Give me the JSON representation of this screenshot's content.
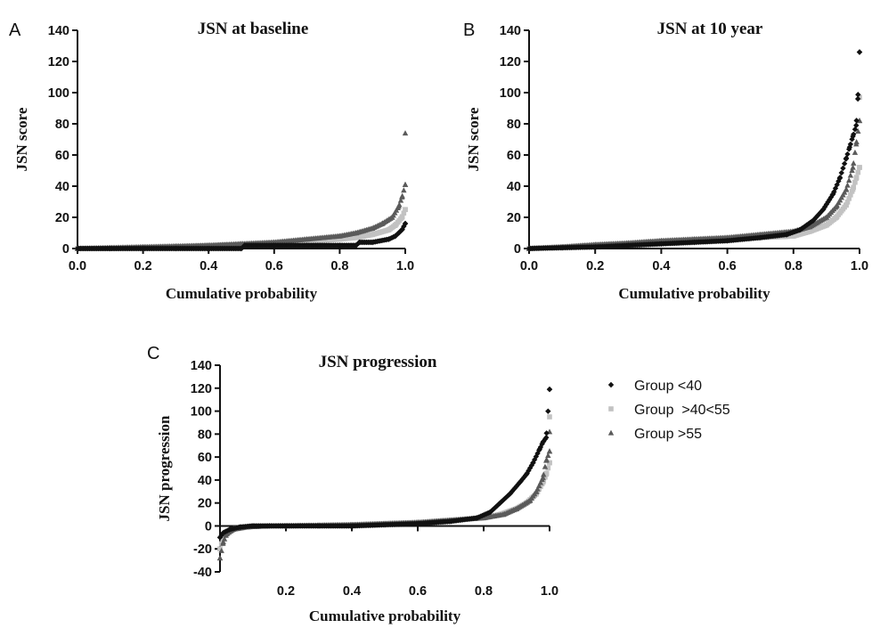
{
  "colors": {
    "g1": "#111111",
    "g2": "#c2c2c2",
    "g3": "#5a5a5a"
  },
  "legend": [
    {
      "label": "Group <40",
      "marker": "diamond",
      "color": "#111111"
    },
    {
      "label": "Group  >40<55",
      "marker": "square",
      "color": "#c2c2c2"
    },
    {
      "label": "Group >55",
      "marker": "triangle",
      "color": "#5a5a5a"
    }
  ],
  "chart_data": [
    {
      "panel": "A",
      "type": "scatter",
      "title": "JSN at baseline",
      "xlabel": "Cumulative probability",
      "ylabel": "JSN score",
      "xlim": [
        0,
        1
      ],
      "ylim": [
        0,
        140
      ],
      "xticks": [
        "0.0",
        "0.2",
        "0.4",
        "0.6",
        "0.8",
        "1.0"
      ],
      "yticks": [
        "0",
        "20",
        "40",
        "60",
        "80",
        "100",
        "120",
        "140"
      ],
      "series": [
        {
          "name": "Group <40",
          "marker": "diamond",
          "color": "#111111",
          "points": [
            [
              0,
              0
            ],
            [
              0.1,
              0
            ],
            [
              0.2,
              0
            ],
            [
              0.3,
              0
            ],
            [
              0.4,
              0
            ],
            [
              0.5,
              0
            ],
            [
              0.51,
              2
            ],
            [
              0.6,
              2
            ],
            [
              0.7,
              2
            ],
            [
              0.8,
              2
            ],
            [
              0.85,
              2
            ],
            [
              0.86,
              4
            ],
            [
              0.9,
              4
            ],
            [
              0.95,
              6
            ],
            [
              0.97,
              8
            ],
            [
              0.98,
              10
            ],
            [
              0.99,
              12
            ],
            [
              1.0,
              16
            ]
          ]
        },
        {
          "name": "Group  >40<55",
          "marker": "square",
          "color": "#c2c2c2",
          "points": [
            [
              0,
              0
            ],
            [
              0.1,
              0
            ],
            [
              0.2,
              0.5
            ],
            [
              0.3,
              1
            ],
            [
              0.4,
              2
            ],
            [
              0.5,
              2.5
            ],
            [
              0.6,
              3.5
            ],
            [
              0.7,
              4.5
            ],
            [
              0.8,
              6
            ],
            [
              0.85,
              7
            ],
            [
              0.9,
              9
            ],
            [
              0.95,
              12
            ],
            [
              0.97,
              15
            ],
            [
              0.99,
              20
            ],
            [
              1.0,
              25
            ]
          ]
        },
        {
          "name": "Group >55",
          "marker": "triangle",
          "color": "#5a5a5a",
          "points": [
            [
              0,
              0
            ],
            [
              0.1,
              0.5
            ],
            [
              0.2,
              1
            ],
            [
              0.3,
              1.5
            ],
            [
              0.4,
              2
            ],
            [
              0.5,
              3
            ],
            [
              0.6,
              4
            ],
            [
              0.7,
              6
            ],
            [
              0.8,
              8
            ],
            [
              0.85,
              10
            ],
            [
              0.9,
              13
            ],
            [
              0.93,
              16
            ],
            [
              0.96,
              20
            ],
            [
              0.98,
              27
            ],
            [
              0.99,
              33
            ],
            [
              1.0,
              41
            ],
            [
              1.0,
              74
            ]
          ]
        }
      ]
    },
    {
      "panel": "B",
      "type": "scatter",
      "title": "JSN at 10 year",
      "xlabel": "Cumulative probability",
      "ylabel": "JSN score",
      "xlim": [
        0,
        1
      ],
      "ylim": [
        0,
        140
      ],
      "xticks": [
        "0.0",
        "0.2",
        "0.4",
        "0.6",
        "0.8",
        "1.0"
      ],
      "yticks": [
        "0",
        "20",
        "40",
        "60",
        "80",
        "100",
        "120",
        "140"
      ],
      "series": [
        {
          "name": "Group <40",
          "marker": "diamond",
          "color": "#111111",
          "points": [
            [
              0,
              0
            ],
            [
              0.1,
              0.5
            ],
            [
              0.2,
              1
            ],
            [
              0.3,
              2
            ],
            [
              0.4,
              3
            ],
            [
              0.5,
              4
            ],
            [
              0.6,
              5
            ],
            [
              0.7,
              7
            ],
            [
              0.78,
              9
            ],
            [
              0.82,
              12
            ],
            [
              0.86,
              18
            ],
            [
              0.89,
              25
            ],
            [
              0.92,
              35
            ],
            [
              0.94,
              45
            ],
            [
              0.96,
              58
            ],
            [
              0.97,
              65
            ],
            [
              0.98,
              72
            ],
            [
              0.99,
              79
            ],
            [
              0.995,
              96
            ],
            [
              1.0,
              126
            ]
          ]
        },
        {
          "name": "Group  >40<55",
          "marker": "square",
          "color": "#c2c2c2",
          "points": [
            [
              0,
              0
            ],
            [
              0.1,
              1
            ],
            [
              0.2,
              2
            ],
            [
              0.3,
              3
            ],
            [
              0.4,
              4
            ],
            [
              0.5,
              5
            ],
            [
              0.6,
              6
            ],
            [
              0.7,
              7
            ],
            [
              0.8,
              8
            ],
            [
              0.85,
              11
            ],
            [
              0.9,
              15
            ],
            [
              0.93,
              20
            ],
            [
              0.96,
              28
            ],
            [
              0.98,
              38
            ],
            [
              0.99,
              45
            ],
            [
              1.0,
              52
            ],
            [
              1.0,
              97
            ]
          ]
        },
        {
          "name": "Group >55",
          "marker": "triangle",
          "color": "#5a5a5a",
          "points": [
            [
              0,
              0
            ],
            [
              0.1,
              1
            ],
            [
              0.2,
              2.5
            ],
            [
              0.3,
              3.5
            ],
            [
              0.4,
              5
            ],
            [
              0.5,
              6
            ],
            [
              0.6,
              7
            ],
            [
              0.7,
              9
            ],
            [
              0.8,
              11
            ],
            [
              0.85,
              14
            ],
            [
              0.9,
              20
            ],
            [
              0.93,
              27
            ],
            [
              0.96,
              38
            ],
            [
              0.98,
              52
            ],
            [
              0.99,
              67
            ],
            [
              1.0,
              82
            ]
          ]
        }
      ]
    },
    {
      "panel": "C",
      "type": "scatter",
      "title": "JSN progression",
      "xlabel": "Cumulative probability",
      "ylabel": "JSN progression",
      "xlim": [
        0,
        1
      ],
      "ylim": [
        -40,
        140
      ],
      "xticks": [
        "0.2",
        "0.4",
        "0.6",
        "0.8",
        "1.0"
      ],
      "yticks": [
        "-40",
        "-20",
        "0",
        "20",
        "40",
        "60",
        "80",
        "100",
        "120",
        "140"
      ],
      "series": [
        {
          "name": "Group <40",
          "marker": "diamond",
          "color": "#111111",
          "points": [
            [
              0.0,
              -10
            ],
            [
              0.01,
              -6
            ],
            [
              0.03,
              -3
            ],
            [
              0.06,
              -1
            ],
            [
              0.1,
              0
            ],
            [
              0.2,
              0
            ],
            [
              0.3,
              0
            ],
            [
              0.4,
              0
            ],
            [
              0.5,
              1
            ],
            [
              0.6,
              2
            ],
            [
              0.7,
              4
            ],
            [
              0.78,
              7
            ],
            [
              0.82,
              12
            ],
            [
              0.85,
              20
            ],
            [
              0.88,
              28
            ],
            [
              0.91,
              38
            ],
            [
              0.93,
              45
            ],
            [
              0.95,
              55
            ],
            [
              0.97,
              67
            ],
            [
              0.98,
              73
            ],
            [
              0.99,
              77
            ],
            [
              1.0,
              119
            ]
          ]
        },
        {
          "name": "Group  >40<55",
          "marker": "square",
          "color": "#c2c2c2",
          "points": [
            [
              0.0,
              -20
            ],
            [
              0.01,
              -10
            ],
            [
              0.02,
              -5
            ],
            [
              0.05,
              -2
            ],
            [
              0.1,
              0
            ],
            [
              0.2,
              0
            ],
            [
              0.3,
              0.5
            ],
            [
              0.4,
              1
            ],
            [
              0.5,
              2
            ],
            [
              0.6,
              3
            ],
            [
              0.7,
              5
            ],
            [
              0.8,
              7
            ],
            [
              0.85,
              10
            ],
            [
              0.9,
              15
            ],
            [
              0.93,
              20
            ],
            [
              0.96,
              28
            ],
            [
              0.98,
              38
            ],
            [
              0.99,
              45
            ],
            [
              1.0,
              55
            ],
            [
              1.0,
              95
            ]
          ]
        },
        {
          "name": "Group >55",
          "marker": "triangle",
          "color": "#5a5a5a",
          "points": [
            [
              0.0,
              -28
            ],
            [
              0.01,
              -14
            ],
            [
              0.02,
              -7
            ],
            [
              0.04,
              -3
            ],
            [
              0.08,
              -1
            ],
            [
              0.15,
              0
            ],
            [
              0.3,
              0.5
            ],
            [
              0.4,
              1
            ],
            [
              0.5,
              2
            ],
            [
              0.6,
              3
            ],
            [
              0.7,
              5
            ],
            [
              0.8,
              7
            ],
            [
              0.86,
              10
            ],
            [
              0.9,
              15
            ],
            [
              0.94,
              22
            ],
            [
              0.96,
              30
            ],
            [
              0.98,
              42
            ],
            [
              0.99,
              57
            ],
            [
              1.0,
              65
            ],
            [
              1.0,
              82
            ]
          ]
        }
      ]
    }
  ]
}
